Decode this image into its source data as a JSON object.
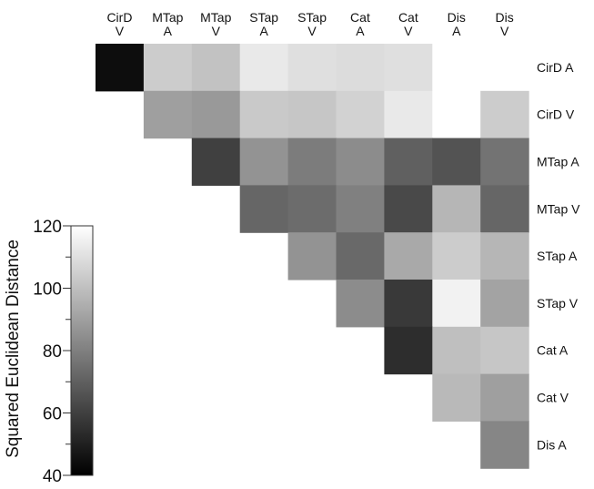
{
  "chart_data": {
    "type": "heatmap",
    "subtype": "upper-triangular distance matrix",
    "columns": [
      [
        "CirD",
        "V"
      ],
      [
        "MTap",
        "A"
      ],
      [
        "MTap",
        "V"
      ],
      [
        "STap",
        "A"
      ],
      [
        "STap",
        "V"
      ],
      [
        "Cat",
        "A"
      ],
      [
        "Cat",
        "V"
      ],
      [
        "Dis",
        "A"
      ],
      [
        "Dis",
        "V"
      ]
    ],
    "rows": [
      "CirD A",
      "CirD V",
      "MTap A",
      "MTap V",
      "STap A",
      "STap V",
      "Cat A",
      "Cat V",
      "Dis A"
    ],
    "values": [
      [
        44,
        104,
        101,
        113,
        110,
        109,
        110,
        120,
        120
      ],
      [
        null,
        90,
        88,
        103,
        102,
        106,
        113,
        120,
        104
      ],
      [
        null,
        null,
        60,
        86,
        79,
        84,
        70,
        66,
        76
      ],
      [
        null,
        null,
        null,
        72,
        74,
        80,
        63,
        97,
        72
      ],
      [
        null,
        null,
        null,
        null,
        86,
        73,
        93,
        104,
        97
      ],
      [
        null,
        null,
        null,
        null,
        null,
        84,
        58,
        116,
        91
      ],
      [
        null,
        null,
        null,
        null,
        null,
        null,
        54,
        100,
        102
      ],
      [
        null,
        null,
        null,
        null,
        null,
        null,
        null,
        98,
        90
      ],
      [
        null,
        null,
        null,
        null,
        null,
        null,
        null,
        null,
        82
      ]
    ],
    "colorbar": {
      "label": "Squared Euclidean Distance",
      "range": [
        40,
        120
      ],
      "ticks": [
        40,
        60,
        80,
        100,
        120
      ],
      "colors": [
        "#000000",
        "#ffffff"
      ]
    }
  }
}
